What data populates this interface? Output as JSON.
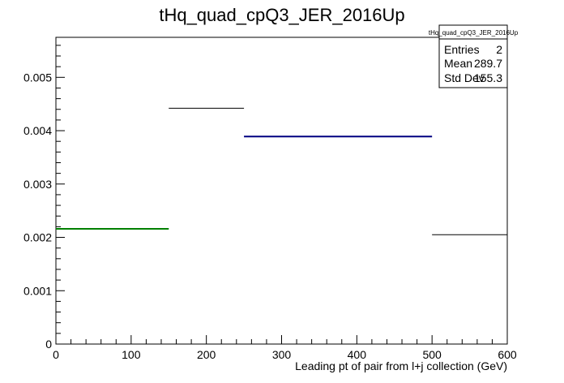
{
  "chart_data": {
    "type": "histogram",
    "title": "tHq_quad_cpQ3_JER_2016Up",
    "xlabel": "Leading pt of pair from l+j collection (GeV)",
    "ylabel": "",
    "xlim": [
      0,
      600
    ],
    "ylim": [
      0,
      0.00575
    ],
    "x_ticks": [
      "0",
      "100",
      "200",
      "300",
      "400",
      "500",
      "600"
    ],
    "y_ticks": [
      "0",
      "0.001",
      "0.002",
      "0.003",
      "0.004",
      "0.005"
    ],
    "bins": [
      {
        "x_low": 0,
        "x_high": 150,
        "value": 0.00216,
        "color": "#008000"
      },
      {
        "x_low": 150,
        "x_high": 250,
        "value": 0.00442,
        "color": "#000000"
      },
      {
        "x_low": 250,
        "x_high": 500,
        "value": 0.00389,
        "color": "#000080"
      },
      {
        "x_low": 500,
        "x_high": 600,
        "value": 0.00205,
        "color": "#000000"
      }
    ],
    "stats_box": {
      "name": "tHq_quad_cpQ3_JER_2016Up",
      "rows": [
        {
          "label": "Entries",
          "value": "2"
        },
        {
          "label": "Mean",
          "value": "289.7"
        },
        {
          "label": "Std Dev",
          "value": "155.3"
        }
      ]
    },
    "legend_placement": "top-right",
    "grid": false
  }
}
